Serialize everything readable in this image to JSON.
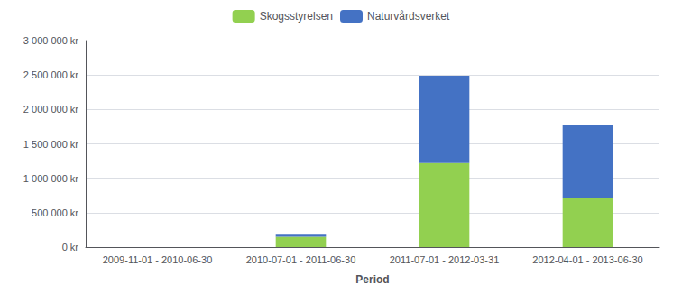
{
  "chart_data": {
    "type": "bar",
    "stacked": true,
    "categories": [
      "2009-11-01 - 2010-06-30",
      "2010-07-01 - 2011-06-30",
      "2011-07-01 - 2012-03-31",
      "2012-04-01 - 2013-06-30"
    ],
    "series": [
      {
        "name": "Skogsstyrelsen",
        "color": "#92d050",
        "values": [
          0,
          150000,
          1220000,
          720000
        ]
      },
      {
        "name": "Naturvårdsverket",
        "color": "#4472c4",
        "values": [
          0,
          30000,
          1270000,
          1050000
        ]
      }
    ],
    "xlabel": "Period",
    "ylim": [
      0,
      3000000
    ],
    "yticks": [
      {
        "value": 0,
        "label": "0 kr"
      },
      {
        "value": 500000,
        "label": "500 000 kr"
      },
      {
        "value": 1000000,
        "label": "1 000 000 kr"
      },
      {
        "value": 1500000,
        "label": "1 500 000 kr"
      },
      {
        "value": 2000000,
        "label": "2 000 000 kr"
      },
      {
        "value": 2500000,
        "label": "2 500 000 kr"
      },
      {
        "value": 3000000,
        "label": "3 000 000 kr"
      }
    ],
    "grid": true,
    "legend": "top"
  }
}
